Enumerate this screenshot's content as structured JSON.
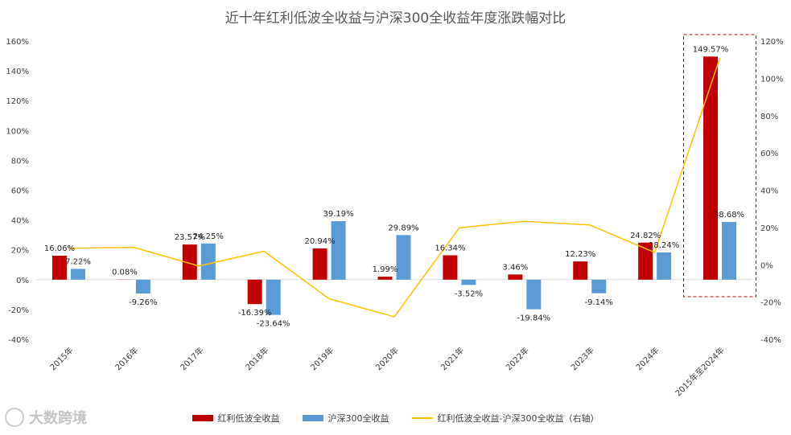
{
  "chart_data": {
    "type": "bar",
    "title": "近十年红利低波全收益与沪深300全收益年度涨跌幅对比",
    "categories": [
      "2015年",
      "2016年",
      "2017年",
      "2018年",
      "2019年",
      "2020年",
      "2021年",
      "2022年",
      "2023年",
      "2024年",
      "2015年至2024年"
    ],
    "series": [
      {
        "name": "红利低波全收益",
        "kind": "bar",
        "axis": "left",
        "color": "#c00000",
        "values": [
          16.06,
          0.08,
          23.57,
          -16.39,
          20.94,
          1.99,
          16.34,
          3.46,
          12.23,
          24.82,
          149.57
        ],
        "labels": [
          "16.06%",
          "0.08%",
          "23.57%",
          "-16.39%",
          "20.94%",
          "1.99%",
          "16.34%",
          "3.46%",
          "12.23%",
          "24.82%",
          "149.57%"
        ]
      },
      {
        "name": "沪深300全收益",
        "kind": "bar",
        "axis": "left",
        "color": "#5b9bd5",
        "values": [
          7.22,
          -9.26,
          24.25,
          -23.64,
          39.19,
          29.89,
          -3.52,
          -19.84,
          -9.14,
          18.24,
          38.68
        ],
        "labels": [
          "7.22%",
          "-9.26%",
          "24.25%",
          "-23.64%",
          "39.19%",
          "29.89%",
          "-3.52%",
          "-19.84%",
          "-9.14%",
          "18.24%",
          "38.68%"
        ]
      },
      {
        "name": "红利低波全收益-沪深300全收益（右轴）",
        "kind": "line",
        "axis": "right",
        "color": "#ffc000",
        "values": [
          8.84,
          9.34,
          -0.68,
          7.25,
          -18.25,
          -27.9,
          19.86,
          23.3,
          21.37,
          6.58,
          110.89
        ]
      }
    ],
    "left_axis": {
      "min": -40,
      "max": 160,
      "step": 20,
      "tick_labels": [
        "-40%",
        "-20%",
        "0%",
        "20%",
        "40%",
        "60%",
        "80%",
        "100%",
        "120%",
        "140%",
        "160%"
      ]
    },
    "right_axis": {
      "min": -40,
      "max": 120,
      "step": 20,
      "tick_labels": [
        "-40%",
        "-20%",
        "0%",
        "20%",
        "40%",
        "60%",
        "80%",
        "100%",
        "120%"
      ]
    },
    "highlight_category": "2015年至2024年",
    "legend_position": "bottom",
    "grid": false
  },
  "legend": {
    "item1": "红利低波全收益",
    "item2": "沪深300全收益",
    "item3": "红利低波全收益-沪深300全收益（右轴）"
  },
  "watermark": {
    "text": "大数跨境"
  }
}
